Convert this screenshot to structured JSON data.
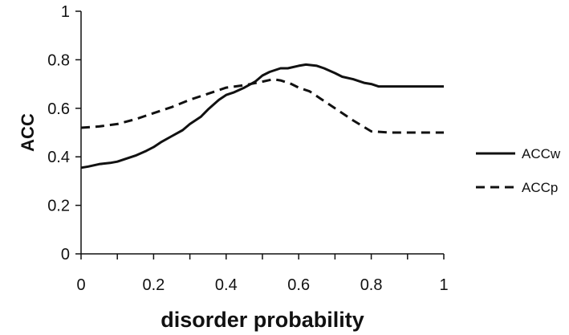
{
  "chart_data": {
    "type": "line",
    "title": "",
    "xlabel": "disorder probability",
    "ylabel": "ACC",
    "xlim": [
      0,
      1
    ],
    "ylim": [
      0,
      1
    ],
    "grid": false,
    "legend_position": "right",
    "x_ticks": [
      "0",
      "0.2",
      "0.4",
      "0.6",
      "0.8",
      "1"
    ],
    "y_ticks": [
      "0",
      "0.2",
      "0.4",
      "0.6",
      "0.8",
      "1"
    ],
    "series": [
      {
        "name": "ACCw",
        "style": "solid",
        "color": "#111111",
        "x": [
          0,
          0.02,
          0.05,
          0.08,
          0.1,
          0.12,
          0.15,
          0.18,
          0.2,
          0.22,
          0.25,
          0.28,
          0.3,
          0.33,
          0.35,
          0.38,
          0.4,
          0.42,
          0.45,
          0.48,
          0.5,
          0.52,
          0.55,
          0.57,
          0.6,
          0.62,
          0.65,
          0.67,
          0.7,
          0.72,
          0.75,
          0.78,
          0.8,
          0.82,
          0.85,
          0.9,
          0.95,
          1
        ],
        "y": [
          0.355,
          0.36,
          0.37,
          0.375,
          0.38,
          0.39,
          0.405,
          0.425,
          0.44,
          0.46,
          0.485,
          0.51,
          0.535,
          0.565,
          0.595,
          0.635,
          0.655,
          0.665,
          0.685,
          0.71,
          0.735,
          0.75,
          0.765,
          0.765,
          0.775,
          0.78,
          0.775,
          0.765,
          0.745,
          0.73,
          0.72,
          0.705,
          0.7,
          0.69,
          0.69,
          0.69,
          0.69,
          0.69
        ]
      },
      {
        "name": "ACCp",
        "style": "dashed",
        "color": "#111111",
        "x": [
          0,
          0.05,
          0.1,
          0.15,
          0.2,
          0.25,
          0.3,
          0.35,
          0.4,
          0.45,
          0.5,
          0.53,
          0.55,
          0.58,
          0.6,
          0.63,
          0.66,
          0.7,
          0.75,
          0.8,
          0.85,
          0.9,
          1
        ],
        "y": [
          0.52,
          0.525,
          0.535,
          0.555,
          0.58,
          0.605,
          0.635,
          0.66,
          0.685,
          0.695,
          0.71,
          0.72,
          0.715,
          0.7,
          0.685,
          0.67,
          0.64,
          0.6,
          0.55,
          0.505,
          0.5,
          0.5,
          0.5
        ]
      }
    ]
  }
}
